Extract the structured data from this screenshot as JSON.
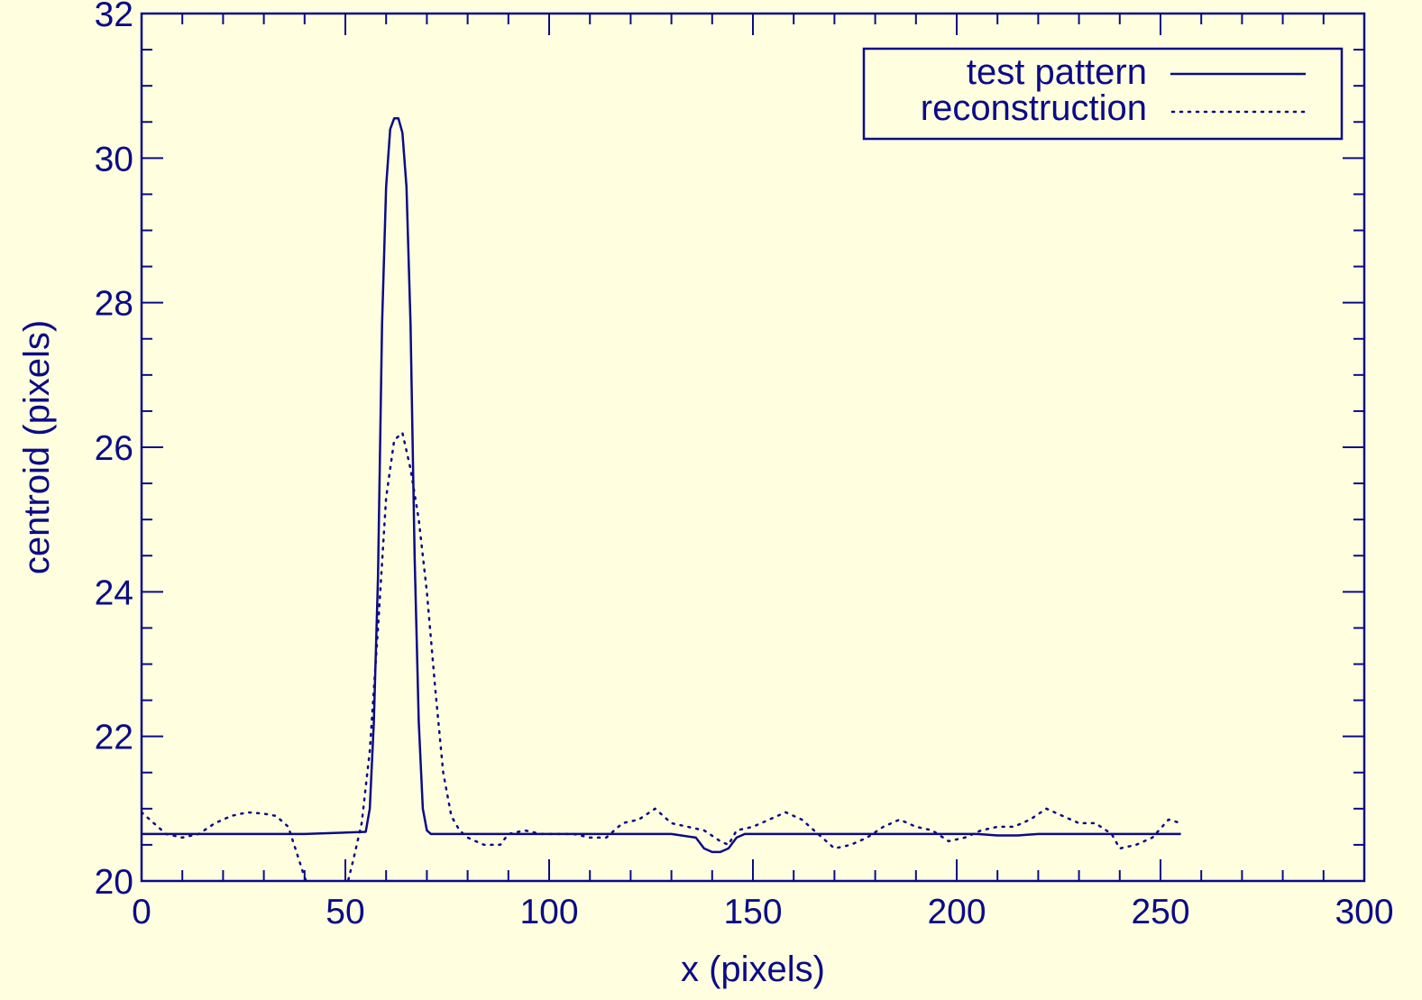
{
  "chart_data": {
    "type": "line",
    "title": "",
    "xlabel": "x (pixels)",
    "ylabel": "centroid (pixels)",
    "xlim": [
      0,
      300
    ],
    "ylim": [
      20,
      32
    ],
    "x_ticks": [
      0,
      50,
      100,
      150,
      200,
      250,
      300
    ],
    "y_ticks": [
      20,
      22,
      24,
      26,
      28,
      30,
      32
    ],
    "x_minor_step": 10,
    "y_minor_step": 0.5,
    "grid": false,
    "legend_position": "top-right",
    "color": "#0b0b88",
    "background": "#ffffe0",
    "series": [
      {
        "name": "test pattern",
        "style": "solid",
        "x": [
          0,
          20,
          40,
          55,
          56,
          57,
          58,
          59,
          60,
          61,
          62,
          63,
          64,
          65,
          66,
          67,
          68,
          69,
          70,
          71,
          72,
          73,
          100,
          130,
          136,
          138,
          140,
          142,
          144,
          146,
          148,
          150,
          180,
          200,
          205,
          210,
          215,
          220,
          230,
          255
        ],
        "y": [
          20.65,
          20.65,
          20.65,
          20.68,
          21.0,
          22.2,
          24.2,
          27.7,
          29.6,
          30.4,
          30.55,
          30.55,
          30.35,
          29.6,
          27.7,
          24.5,
          22.2,
          21.0,
          20.7,
          20.65,
          20.65,
          20.65,
          20.65,
          20.65,
          20.6,
          20.45,
          20.4,
          20.4,
          20.45,
          20.6,
          20.65,
          20.65,
          20.65,
          20.65,
          20.65,
          20.63,
          20.63,
          20.65,
          20.65,
          20.65
        ]
      },
      {
        "name": "reconstruction",
        "style": "dotted",
        "x": [
          0,
          3,
          6,
          10,
          14,
          18,
          22,
          26,
          30,
          33,
          36,
          38,
          40,
          42,
          45,
          48,
          50,
          52,
          54,
          56,
          58,
          60,
          62,
          64,
          66,
          68,
          70,
          72,
          74,
          76,
          78,
          80,
          84,
          88,
          90,
          94,
          98,
          102,
          106,
          110,
          114,
          118,
          122,
          126,
          130,
          134,
          138,
          142,
          144,
          146,
          150,
          154,
          158,
          162,
          166,
          170,
          174,
          178,
          182,
          186,
          190,
          194,
          198,
          202,
          206,
          210,
          214,
          218,
          222,
          226,
          230,
          234,
          238,
          240,
          244,
          248,
          252,
          255
        ],
        "y": [
          20.95,
          20.8,
          20.65,
          20.6,
          20.65,
          20.8,
          20.9,
          20.95,
          20.93,
          20.9,
          20.75,
          20.4,
          20.05,
          19.8,
          19.8,
          19.8,
          19.85,
          20.3,
          20.8,
          21.8,
          23.5,
          25.3,
          26.1,
          26.2,
          25.7,
          25.0,
          24.0,
          22.7,
          21.5,
          20.9,
          20.7,
          20.6,
          20.5,
          20.5,
          20.65,
          20.7,
          20.65,
          20.65,
          20.65,
          20.6,
          20.6,
          20.8,
          20.85,
          21.0,
          20.8,
          20.75,
          20.7,
          20.55,
          20.5,
          20.7,
          20.75,
          20.85,
          20.95,
          20.85,
          20.65,
          20.45,
          20.5,
          20.6,
          20.75,
          20.85,
          20.75,
          20.7,
          20.55,
          20.6,
          20.7,
          20.75,
          20.75,
          20.85,
          21.0,
          20.9,
          20.8,
          20.8,
          20.65,
          20.45,
          20.5,
          20.6,
          20.85,
          20.8
        ]
      }
    ]
  }
}
